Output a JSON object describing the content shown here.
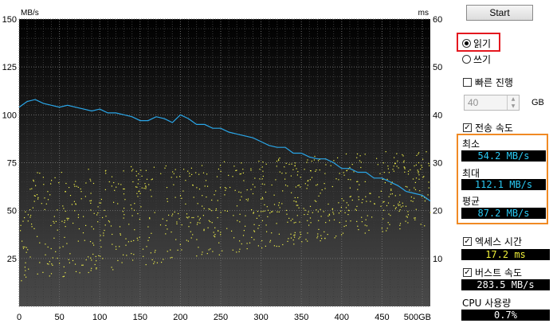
{
  "chart": {
    "left_unit": "MB/s",
    "right_unit": "ms",
    "x_ticks": [
      "0",
      "50",
      "100",
      "150",
      "200",
      "250",
      "300",
      "350",
      "400",
      "450",
      "500GB"
    ],
    "y_left_ticks": [
      "150",
      "125",
      "100",
      "75",
      "50",
      "25"
    ],
    "y_right_ticks": [
      "60",
      "50",
      "40",
      "30",
      "20",
      "10"
    ],
    "transfer_color": "#2aa6e8",
    "access_color": "#f3f34a"
  },
  "chart_data": {
    "type": "line",
    "x_unit": "GB",
    "xlim": [
      0,
      500
    ],
    "ylim_left": [
      0,
      150
    ],
    "ylim_right": [
      0,
      60
    ],
    "grid": true,
    "series": [
      {
        "kind": "line",
        "x": [
          0,
          10,
          20,
          30,
          40,
          50,
          60,
          70,
          80,
          90,
          100,
          110,
          120,
          130,
          140,
          150,
          160,
          170,
          180,
          190,
          200,
          210,
          220,
          230,
          240,
          250,
          260,
          270,
          280,
          290,
          300,
          310,
          320,
          330,
          340,
          350,
          360,
          370,
          380,
          390,
          400,
          410,
          420,
          430,
          440,
          450,
          460,
          470,
          480,
          490,
          500,
          510
        ],
        "values": [
          104,
          107,
          108,
          106,
          105,
          104,
          105,
          104,
          103,
          102,
          103,
          101,
          101,
          100,
          99,
          97,
          97,
          99,
          98,
          96,
          100,
          98,
          95,
          95,
          93,
          93,
          91,
          90,
          89,
          88,
          86,
          84,
          83,
          83,
          80,
          80,
          78,
          77,
          77,
          75,
          72,
          72,
          70,
          70,
          67,
          67,
          65,
          63,
          60,
          59,
          58,
          55
        ]
      },
      {
        "kind": "scatter",
        "axis": "right",
        "x_range": [
          0,
          510
        ],
        "y_range_start": [
          5,
          28
        ],
        "y_range_end": [
          17,
          33
        ]
      }
    ]
  },
  "controls": {
    "start_label": "Start",
    "read_label": "읽기",
    "write_label": "쓰기",
    "fast_progress_label": "빠른 진행",
    "size_value": "40",
    "size_unit": "GB",
    "transfer_rate_label": "전송 속도",
    "min_label": "최소",
    "min_value": "54.2 MB/s",
    "max_label": "최대",
    "max_value": "112.1 MB/s",
    "avg_label": "평균",
    "avg_value": "87.2 MB/s",
    "access_time_label": "엑세스 시간",
    "access_time_value": "17.2 ms",
    "burst_rate_label": "버스트 속도",
    "burst_rate_value": "283.5 MB/s",
    "cpu_label": "CPU 사용량",
    "cpu_value": "0.7%"
  }
}
